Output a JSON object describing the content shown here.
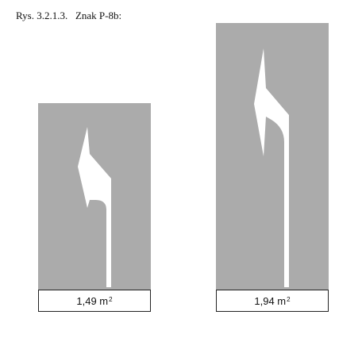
{
  "caption": "Rys. 3.2.1.3.   Znak P-8b:",
  "colors": {
    "pavement": "#ababab",
    "marking": "#ffffff",
    "label_border": "#222222"
  },
  "signs": [
    {
      "icon": "turn-left-arrow-icon",
      "area_value": "1,49 m",
      "area_unit_exponent": "2"
    },
    {
      "icon": "turn-left-arrow-icon",
      "area_value": "1,94 m",
      "area_unit_exponent": "2"
    }
  ]
}
